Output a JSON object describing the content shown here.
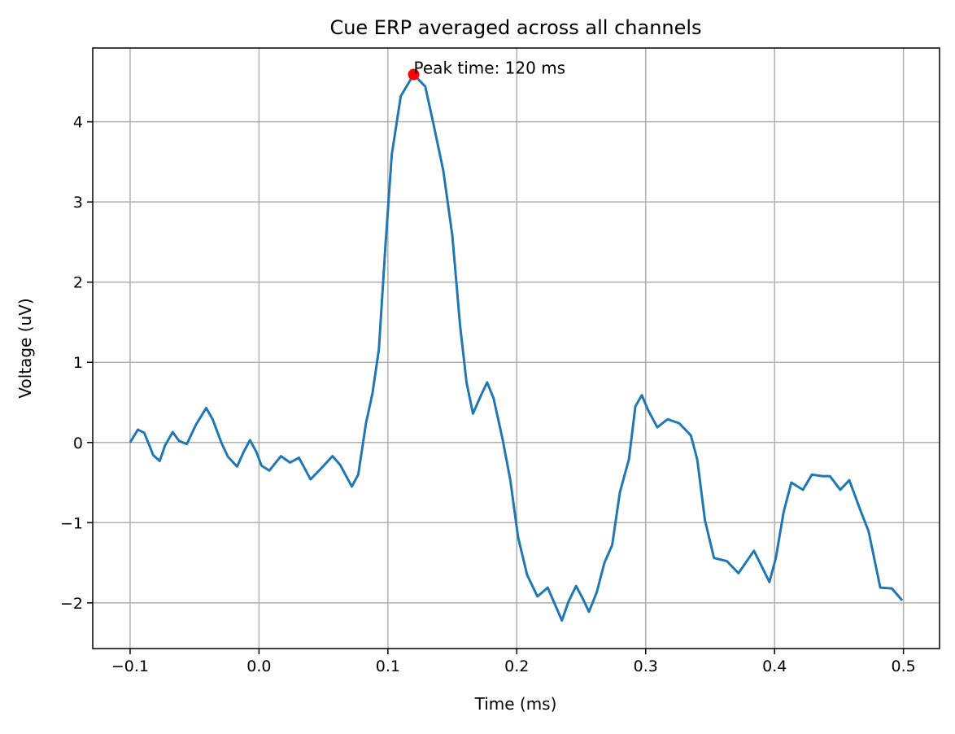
{
  "chart_data": {
    "type": "line",
    "title": "Cue ERP averaged across all channels",
    "x_label": "Time (ms)",
    "y_label": "Voltage (uV)",
    "xlim": [
      -0.129,
      0.528
    ],
    "ylim": [
      -2.57,
      4.92
    ],
    "xticks": [
      {
        "value": -0.1,
        "label": "−0.1"
      },
      {
        "value": 0,
        "label": "0.0"
      },
      {
        "value": 0.1,
        "label": "0.1"
      },
      {
        "value": 0.2,
        "label": "0.2"
      },
      {
        "value": 0.3,
        "label": "0.3"
      },
      {
        "value": 0.4,
        "label": "0.4"
      },
      {
        "value": 0.5,
        "label": "0.5"
      }
    ],
    "yticks": [
      {
        "value": -2,
        "label": "−2"
      },
      {
        "value": -1,
        "label": "−1"
      },
      0,
      1,
      2,
      3,
      4
    ],
    "grid": true,
    "x": [
      -0.1,
      -0.094,
      -0.089,
      -0.082,
      -0.077,
      -0.073,
      -0.067,
      -0.062,
      -0.056,
      -0.049,
      -0.041,
      -0.036,
      -0.029,
      -0.024,
      -0.017,
      -0.012,
      -0.007,
      -0.002,
      0.002,
      0.008,
      0.017,
      0.024,
      0.031,
      0.04,
      0.049,
      0.057,
      0.063,
      0.072,
      0.077,
      0.083,
      0.088,
      0.093,
      0.098,
      0.103,
      0.11,
      0.12,
      0.129,
      0.135,
      0.143,
      0.15,
      0.156,
      0.161,
      0.166,
      0.172,
      0.177,
      0.182,
      0.189,
      0.195,
      0.201,
      0.208,
      0.216,
      0.224,
      0.235,
      0.24,
      0.246,
      0.251,
      0.256,
      0.262,
      0.268,
      0.274,
      0.28,
      0.287,
      0.292,
      0.297,
      0.302,
      0.309,
      0.317,
      0.326,
      0.335,
      0.34,
      0.346,
      0.353,
      0.363,
      0.372,
      0.384,
      0.388,
      0.396,
      0.401,
      0.407,
      0.413,
      0.422,
      0.429,
      0.437,
      0.443,
      0.451,
      0.458,
      0.466,
      0.473,
      0.482,
      0.491,
      0.499
    ],
    "series": [
      {
        "color": "#1f77b4",
        "values": [
          0,
          0.16,
          0.12,
          -0.16,
          -0.23,
          -0.04,
          0.13,
          0.02,
          -0.02,
          0.22,
          0.43,
          0.29,
          -0.01,
          -0.18,
          -0.3,
          -0.12,
          0.03,
          -0.12,
          -0.29,
          -0.35,
          -0.17,
          -0.25,
          -0.19,
          -0.46,
          -0.31,
          -0.17,
          -0.28,
          -0.55,
          -0.4,
          0.24,
          0.61,
          1.16,
          2.43,
          3.59,
          4.32,
          4.59,
          4.44,
          4.0,
          3.39,
          2.58,
          1.46,
          0.75,
          0.36,
          0.58,
          0.75,
          0.55,
          0.04,
          -0.47,
          -1.18,
          -1.65,
          -1.92,
          -1.81,
          -2.22,
          -1.99,
          -1.79,
          -1.94,
          -2.11,
          -1.87,
          -1.5,
          -1.28,
          -0.62,
          -0.21,
          0.45,
          0.59,
          0.4,
          0.19,
          0.29,
          0.24,
          0.09,
          -0.21,
          -0.97,
          -1.44,
          -1.48,
          -1.63,
          -1.35,
          -1.48,
          -1.74,
          -1.44,
          -0.87,
          -0.5,
          -0.59,
          -0.4,
          -0.42,
          -0.42,
          -0.59,
          -0.47,
          -0.82,
          -1.11,
          -1.81,
          -1.82,
          -1.97
        ]
      }
    ],
    "peak": {
      "x": 0.12,
      "y": 4.59,
      "color": "#ff0000",
      "label": "Peak time: 120 ms"
    }
  }
}
